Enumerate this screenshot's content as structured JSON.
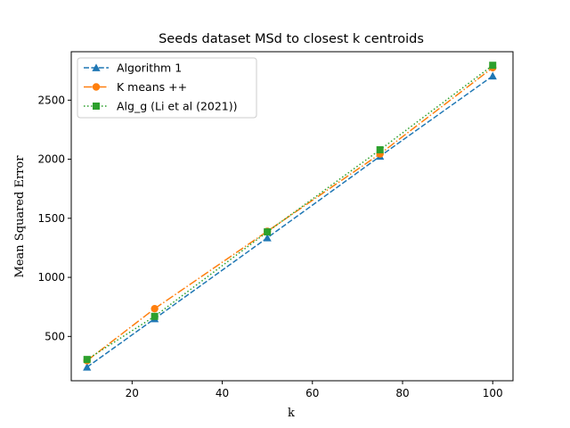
{
  "chart_data": {
    "type": "line",
    "title": "Seeds dataset MSd to closest k centroids",
    "xlabel": "k",
    "ylabel": "Mean Squared Error",
    "xlim": [
      6.5,
      104.5
    ],
    "ylim": [
      125,
      2910
    ],
    "xticks": [
      20,
      40,
      60,
      80,
      100
    ],
    "yticks": [
      500,
      1000,
      1500,
      2000,
      2500
    ],
    "x": [
      10,
      25,
      50,
      75,
      100
    ],
    "grid": false,
    "legend_position": "top-left",
    "series": [
      {
        "name": "Algorithm 1",
        "values": [
          240,
          650,
          1335,
          2025,
          2705
        ],
        "color": "#1f77b4",
        "marker": "triangle-up",
        "linestyle": "dashed"
      },
      {
        "name": "K means ++",
        "values": [
          295,
          735,
          1390,
          2045,
          2775
        ],
        "color": "#ff7f0e",
        "marker": "circle",
        "linestyle": "dashdot"
      },
      {
        "name": "Alg_g (Li et al (2021))",
        "values": [
          305,
          670,
          1385,
          2080,
          2795
        ],
        "color": "#2ca02c",
        "marker": "square",
        "linestyle": "dotted"
      }
    ]
  }
}
